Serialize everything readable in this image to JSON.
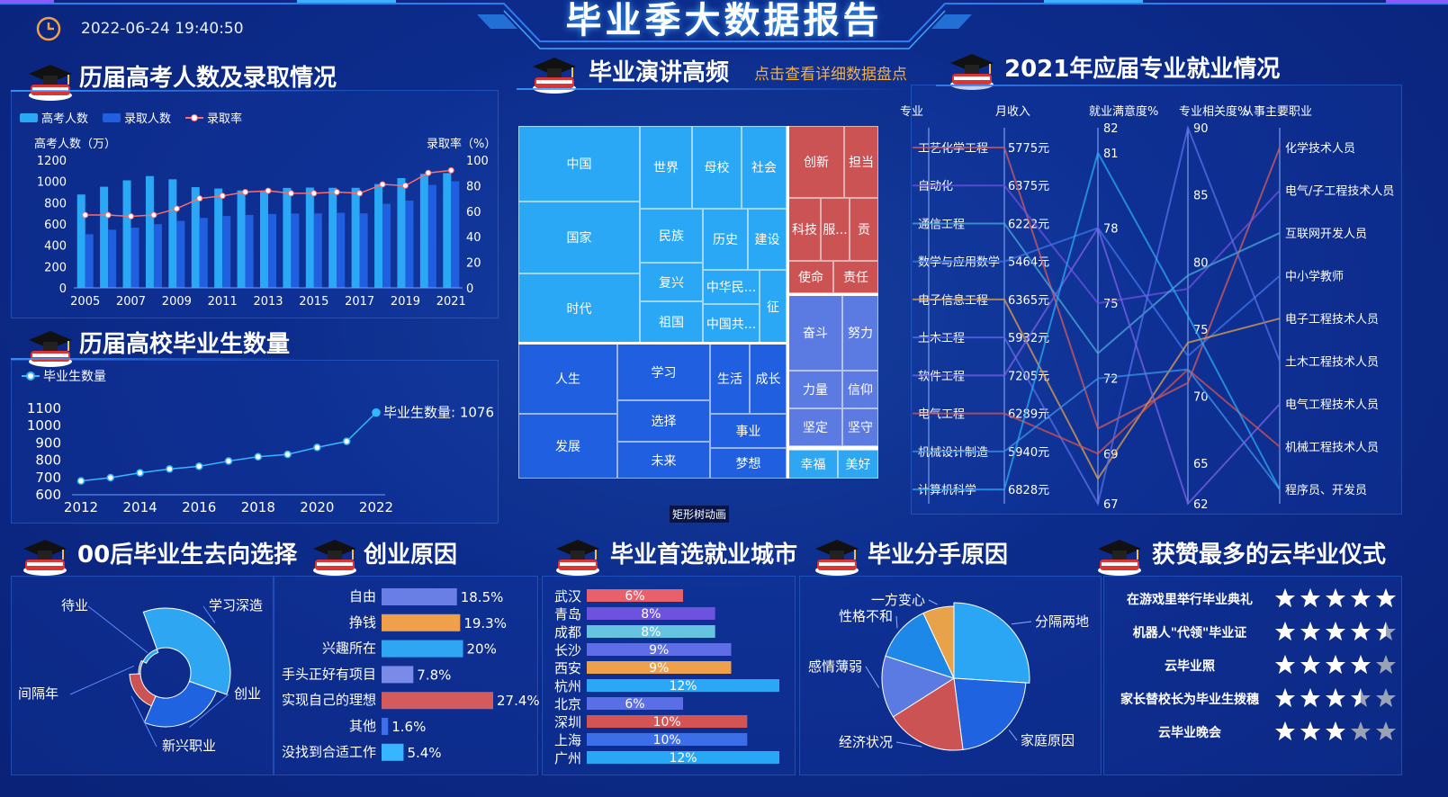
{
  "header": {
    "title": "毕业季大数据报告",
    "datetime": "2022-06-24 19:40:50"
  },
  "panels": {
    "gaokao": "历届高考人数及录取情况",
    "grads": "历届高校毕业生数量",
    "speech": "毕业演讲高频",
    "speech_link": "点击查看详细数据盘点",
    "major": "2021年应届专业就业情况",
    "after00": "00后毕业生去向选择",
    "startup": "创业原因",
    "city": "毕业首选就业城市",
    "breakup": "毕业分手原因",
    "ceremony": "获赞最多的云毕业仪式"
  },
  "treemap_caption": "矩形树动画",
  "chart_data": [
    {
      "id": "gaokao",
      "type": "bar",
      "legend": [
        "高考人数",
        "录取人数",
        "录取率"
      ],
      "ylabel": "高考人数（万）",
      "y2label": "录取率（%）",
      "ylim": [
        0,
        1200
      ],
      "y2lim": [
        0,
        100
      ],
      "yticks": [
        "0",
        "200",
        "400",
        "600",
        "800",
        "1000",
        "1200"
      ],
      "y2ticks": [
        "0",
        "20",
        "40",
        "60",
        "80",
        "100"
      ],
      "x": [
        "2005",
        "2006",
        "2007",
        "2008",
        "2009",
        "2010",
        "2011",
        "2012",
        "2013",
        "2014",
        "2015",
        "2016",
        "2017",
        "2018",
        "2019",
        "2020",
        "2021"
      ],
      "xticks": [
        "2005",
        "2007",
        "2009",
        "2011",
        "2013",
        "2015",
        "2017",
        "2019",
        "2021"
      ],
      "series": [
        {
          "name": "高考人数",
          "values": [
            877,
            950,
            1010,
            1050,
            1020,
            946,
            933,
            915,
            912,
            939,
            942,
            940,
            940,
            975,
            1031,
            1071,
            1078
          ]
        },
        {
          "name": "录取人数",
          "values": [
            504,
            546,
            566,
            599,
            629,
            657,
            675,
            685,
            694,
            698,
            700,
            705,
            700,
            790,
            820,
            967,
            1001
          ]
        },
        {
          "name": "录取率",
          "values": [
            57,
            57,
            56,
            57,
            62,
            70,
            72,
            75,
            76,
            74,
            74,
            75,
            74,
            81,
            80,
            90,
            92
          ]
        }
      ]
    },
    {
      "id": "grads",
      "type": "line",
      "legend": [
        "毕业生数量"
      ],
      "ylim": [
        600,
        1100
      ],
      "yticks": [
        "600",
        "700",
        "800",
        "900",
        "1000",
        "1100"
      ],
      "x": [
        "2012",
        "2013",
        "2014",
        "2015",
        "2016",
        "2017",
        "2018",
        "2019",
        "2020",
        "2021",
        "2022"
      ],
      "xticks": [
        "2012",
        "2014",
        "2016",
        "2018",
        "2020",
        "2022"
      ],
      "values": [
        680,
        699,
        727,
        749,
        765,
        795,
        820,
        834,
        874,
        909,
        1076
      ],
      "annotation": "毕业生数量: 1076"
    },
    {
      "id": "major",
      "type": "parallel",
      "axes": [
        "专业",
        "月收入",
        "就业满意度%",
        "专业相关度%",
        "从事主要职业"
      ],
      "majors": [
        "工艺化学工程",
        "自动化",
        "通信工程",
        "数学与应用数学",
        "电子信息工程",
        "土木工程",
        "软件工程",
        "电气工程",
        "机械设计制造",
        "计算机科学"
      ],
      "income": [
        "5775元",
        "6375元",
        "6222元",
        "5464元",
        "6365元",
        "5932元",
        "7205元",
        "6289元",
        "5940元",
        "6828元"
      ],
      "sat_ticks": [
        "82",
        "81",
        "78",
        "75",
        "72",
        "69",
        "67"
      ],
      "rel_ticks": [
        "90",
        "85",
        "80",
        "75",
        "70",
        "65",
        "62"
      ],
      "jobs": [
        "化学技术人员",
        "电气/子工程技术人员",
        "互联网开发人员",
        "中小学教师",
        "电子工程技术人员",
        "土木工程技术人员",
        "电气工程技术人员",
        "机械工程技术人员",
        "程序员、开发员"
      ],
      "satisfaction": [
        70,
        75,
        73,
        78,
        68,
        67,
        78,
        69,
        72,
        81
      ],
      "relevance": [
        71,
        78,
        79,
        73,
        74,
        90,
        62,
        72,
        72,
        76
      ],
      "job_index": [
        0,
        1,
        2,
        3,
        4,
        5,
        6,
        7,
        8,
        8
      ]
    },
    {
      "id": "after00",
      "type": "pie",
      "labels": [
        "学习深造",
        "创业",
        "新兴职业",
        "间隔年",
        "待业"
      ],
      "values": [
        36,
        26,
        18,
        8,
        12
      ]
    },
    {
      "id": "startup",
      "type": "bar",
      "categories": [
        "自由",
        "挣钱",
        "兴趣所在",
        "手头正好有项目",
        "实现自己的理想",
        "其他",
        "没找到合适工作"
      ],
      "values": [
        18.5,
        19.3,
        20,
        7.8,
        27.4,
        1.6,
        5.4
      ],
      "labels": [
        "18.5%",
        "19.3%",
        "20%",
        "7.8%",
        "27.4%",
        "1.6%",
        "5.4%"
      ],
      "colors": [
        "#6a7fe6",
        "#f0a04b",
        "#2fa6f2",
        "#7a8ae8",
        "#d45b5b",
        "#3f6ee8",
        "#35b6ff"
      ]
    },
    {
      "id": "city",
      "type": "bar",
      "categories": [
        "武汉",
        "青岛",
        "成都",
        "长沙",
        "西安",
        "杭州",
        "北京",
        "深圳",
        "上海",
        "广州"
      ],
      "values": [
        6,
        8,
        8,
        9,
        9,
        12,
        6,
        10,
        10,
        12
      ],
      "labels": [
        "6%",
        "8%",
        "8%",
        "9%",
        "9%",
        "12%",
        "6%",
        "10%",
        "10%",
        "12%"
      ],
      "colors": [
        "#e8606a",
        "#6d52de",
        "#66c4e0",
        "#5f6ee6",
        "#efa04a",
        "#2aa8f5",
        "#5a6ee6",
        "#d45353",
        "#3c6ee8",
        "#27a7f4"
      ]
    },
    {
      "id": "breakup",
      "type": "pie",
      "labels": [
        "分隔两地",
        "家庭原因",
        "经济状况",
        "感情薄弱",
        "性格不和",
        "一方变心"
      ],
      "values": [
        26,
        22,
        18,
        14,
        13,
        7
      ],
      "colors": [
        "#2ba6f4",
        "#1f63e0",
        "#cc5353",
        "#5b7be3",
        "#1e88e8",
        "#e7a24a"
      ]
    }
  ],
  "treemap": {
    "group1": [
      "中国",
      "国家",
      "时代",
      "世界",
      "母校",
      "社会",
      "民族",
      "历史",
      "建设",
      "复兴",
      "中华民...",
      "征",
      "祖国",
      "中国共..."
    ],
    "group2": [
      "创新",
      "担当",
      "科技",
      "服...",
      "贡",
      "使命",
      "责任"
    ],
    "group3": [
      "人生",
      "发展",
      "学习",
      "选择",
      "未来",
      "生活",
      "成长",
      "事业",
      "梦想"
    ],
    "group4": [
      "奋斗",
      "努力",
      "力量",
      "信仰",
      "坚定",
      "坚守"
    ],
    "group5": [
      "幸福",
      "美好"
    ]
  },
  "ceremony": {
    "items": [
      "在游戏里举行毕业典礼",
      "机器人\"代领\"毕业证",
      "云毕业照",
      "家长替校长为毕业生拨穗",
      "云毕业晚会"
    ],
    "stars": [
      5,
      4.5,
      4,
      3.5,
      3
    ]
  }
}
